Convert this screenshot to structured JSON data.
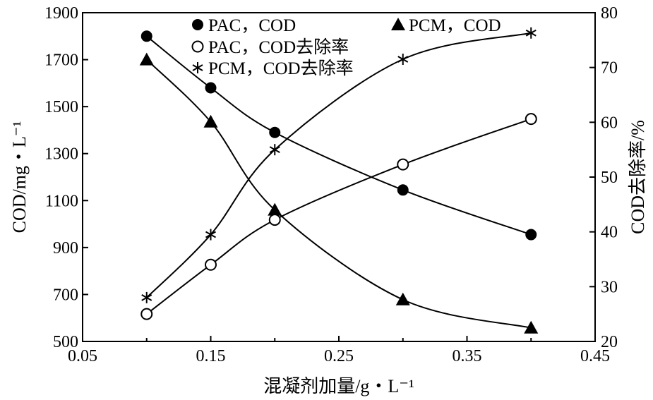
{
  "chart_data": {
    "type": "line",
    "title": "",
    "xlabel": "混凝剂加量/g・L⁻¹",
    "ylabel_left": "COD/mg・L⁻¹",
    "ylabel_right": "COD去除率/%",
    "xlim": [
      0.05,
      0.45
    ],
    "ylim_left": [
      500,
      1900
    ],
    "ylim_right": [
      20,
      80
    ],
    "x_ticks": [
      "0.05",
      "0.15",
      "0.25",
      "0.35",
      "0.45"
    ],
    "y_left_ticks": [
      "500",
      "700",
      "900",
      "1100",
      "1300",
      "1500",
      "1700",
      "1900"
    ],
    "y_right_ticks": [
      "20",
      "30",
      "40",
      "50",
      "60",
      "70",
      "80"
    ],
    "grid": false,
    "legend_placement": "top",
    "x": [
      0.1,
      0.15,
      0.2,
      0.3,
      0.4
    ],
    "series": [
      {
        "name": "PAC，COD",
        "axis": "left",
        "marker": "filled-circle",
        "values": [
          1800,
          1580,
          1390,
          1145,
          955
        ]
      },
      {
        "name": "PCM，COD",
        "axis": "left",
        "marker": "filled-triangle",
        "values": [
          1700,
          1435,
          1060,
          678,
          558
        ]
      },
      {
        "name": "PAC，COD去除率",
        "axis": "right",
        "marker": "open-circle",
        "values": [
          25,
          34,
          42.2,
          52.3,
          60.6
        ]
      },
      {
        "name": "PCM，COD去除率",
        "axis": "right",
        "marker": "asterisk",
        "values": [
          28,
          39.5,
          55,
          71.5,
          76.3
        ]
      }
    ],
    "colors": {
      "line": "#000000",
      "background": "#ffffff"
    }
  }
}
